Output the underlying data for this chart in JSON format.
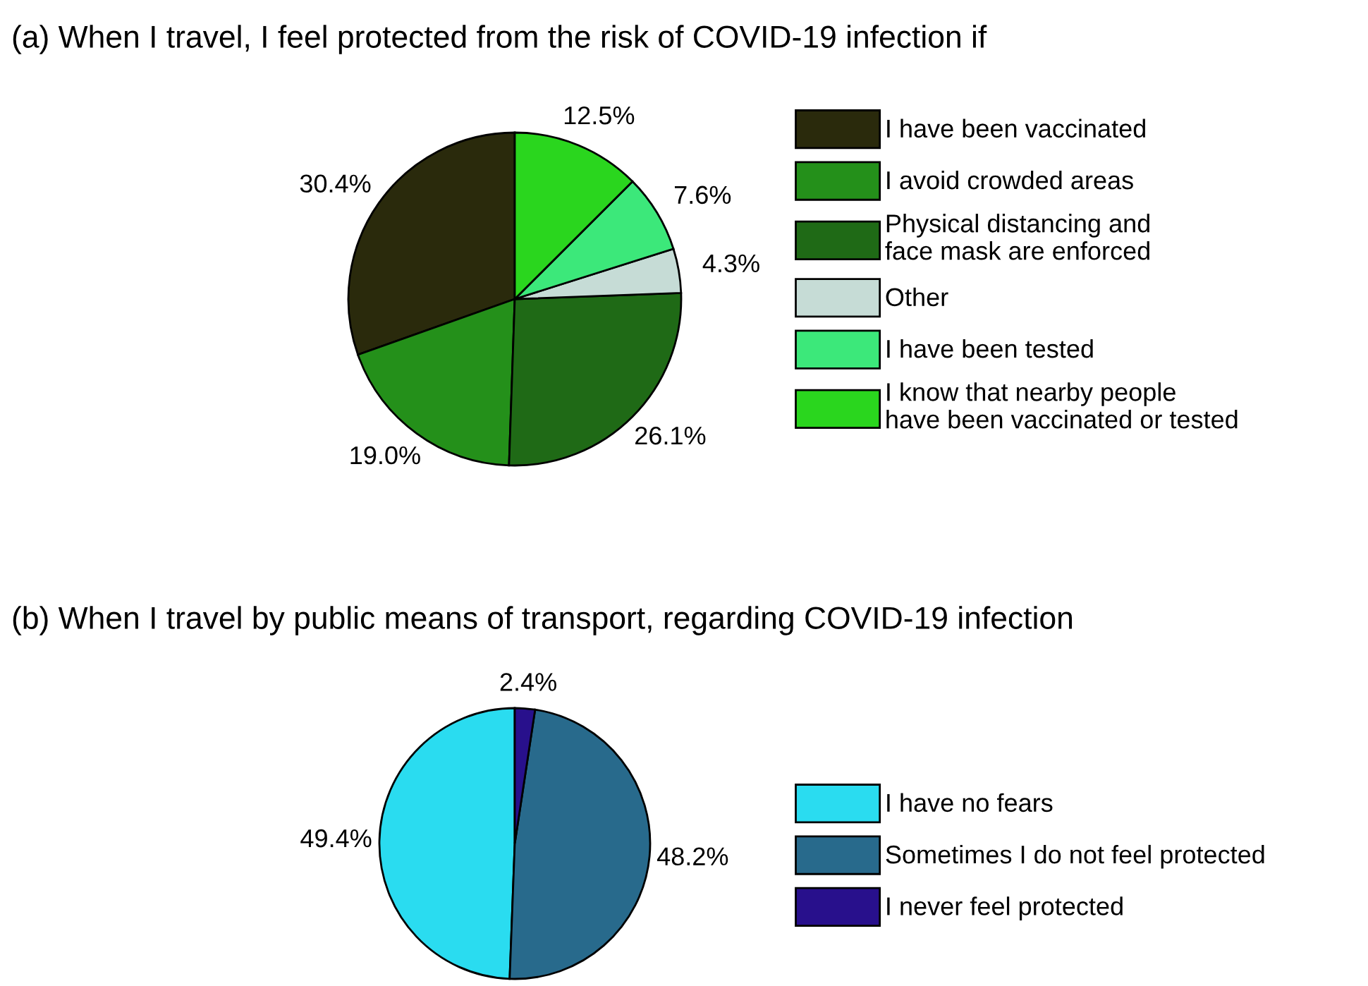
{
  "chart_data": [
    {
      "type": "pie",
      "title": "(a) When I travel, I feel protected from the risk of COVID-19 infection if",
      "categories": [
        "I have been vaccinated",
        "I avoid crowded areas",
        "Physical distancing and\nface mask are enforced",
        "Other",
        "I have been tested",
        "I know that nearby people\nhave been vaccinated or tested"
      ],
      "values": [
        30.4,
        19.0,
        26.1,
        4.3,
        7.6,
        12.5
      ],
      "value_labels": [
        "30.4%",
        "19.0%",
        "26.1%",
        "4.3%",
        "7.6%",
        "12.5%"
      ],
      "colors": [
        "#2a2a0c",
        "#24901a",
        "#1f6a16",
        "#c6dcd6",
        "#3ce87a",
        "#2ad61e"
      ],
      "legend": "right"
    },
    {
      "type": "pie",
      "title": "(b) When I travel by public means of transport, regarding COVID-19 infection",
      "categories": [
        "I have no fears",
        "Sometimes I do not feel protected",
        "I never feel protected"
      ],
      "values": [
        49.4,
        48.2,
        2.4
      ],
      "value_labels": [
        "49.4%",
        "48.2%",
        "2.4%"
      ],
      "colors": [
        "#2adcf0",
        "#286a8c",
        "#28108c"
      ],
      "legend": "right"
    }
  ]
}
